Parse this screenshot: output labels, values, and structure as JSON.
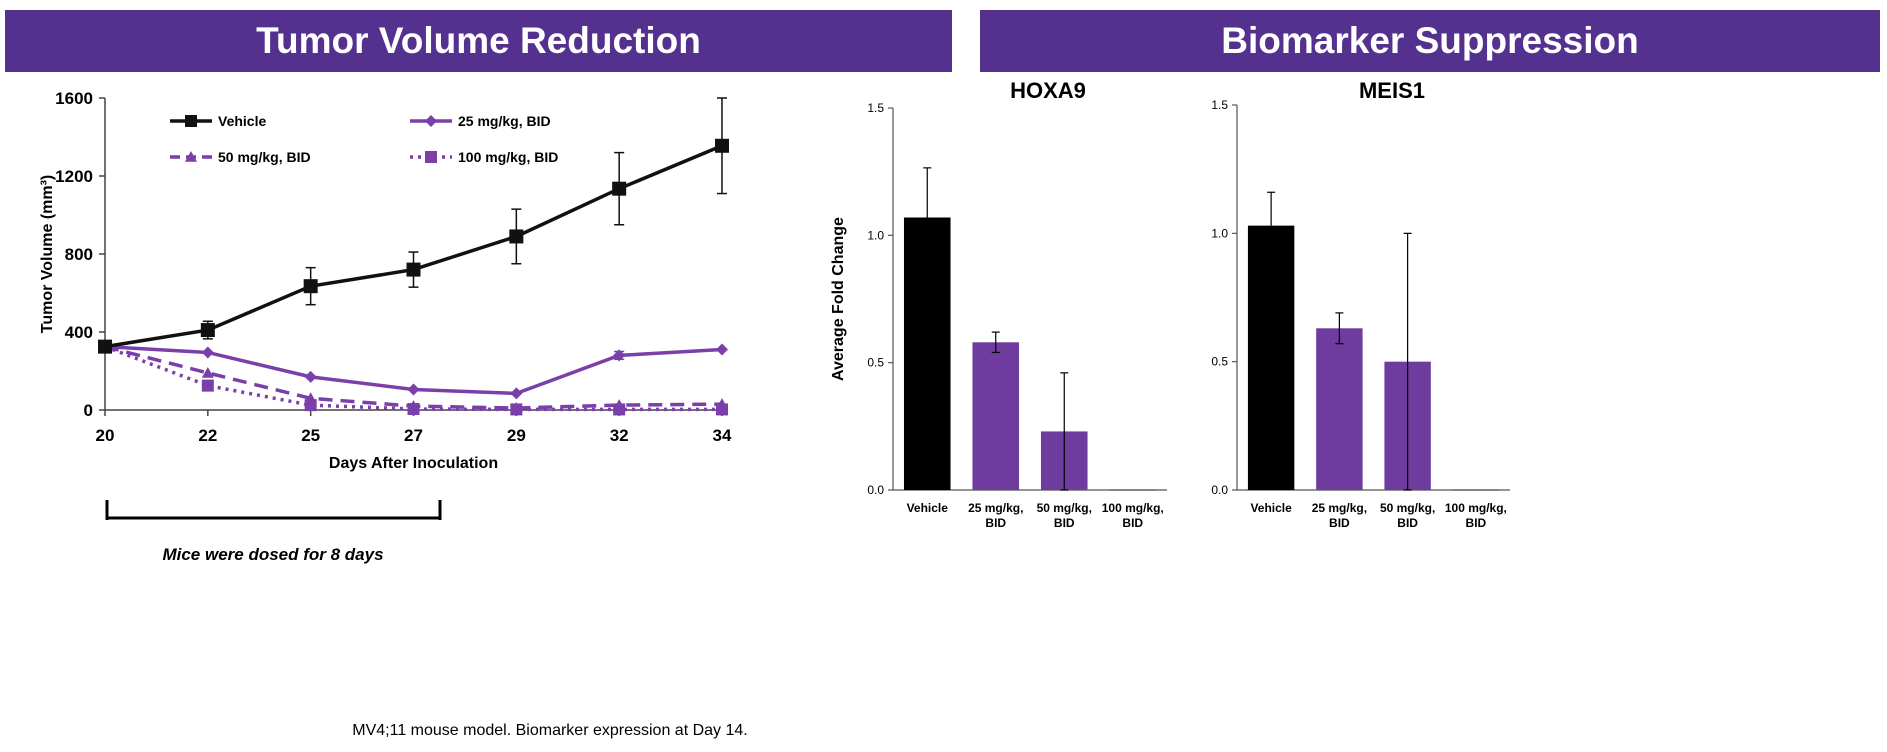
{
  "banners": {
    "left": "Tumor Volume Reduction",
    "right": "Biomarker Suppression"
  },
  "caption": "MV4;11 mouse model. Biomarker expression at Day 14.",
  "dosing_note": "Mice were dosed for 8 days",
  "chart_data": [
    {
      "type": "line",
      "title": "Tumor Volume Reduction",
      "xlabel": "Days After Inoculation",
      "ylabel": "Tumor Volume (mm³)",
      "categories": [
        "20",
        "22",
        "25",
        "27",
        "29",
        "32",
        "34"
      ],
      "ylim": [
        0,
        1600
      ],
      "yticks": [
        "0",
        "400",
        "800",
        "1200",
        "1600"
      ],
      "series": [
        {
          "name": "Vehicle",
          "marker": "square",
          "dash": "solid",
          "color": "#111111",
          "values": [
            325,
            410,
            635,
            720,
            890,
            1135,
            1355
          ],
          "errors": [
            0,
            45,
            95,
            90,
            140,
            185,
            245
          ]
        },
        {
          "name": "25 mg/kg, BID",
          "marker": "diamond",
          "dash": "solid",
          "color": "#7a3fa8",
          "values": [
            325,
            295,
            170,
            105,
            85,
            280,
            310
          ],
          "errors": [
            0,
            0,
            0,
            0,
            0,
            20,
            0
          ]
        },
        {
          "name": "50 mg/kg, BID",
          "marker": "triangle",
          "dash": "dashed",
          "color": "#7a3fa8",
          "values": [
            325,
            190,
            60,
            20,
            10,
            25,
            30
          ],
          "errors": [
            0,
            0,
            0,
            0,
            0,
            0,
            0
          ]
        },
        {
          "name": "100 mg/kg, BID",
          "marker": "square",
          "dash": "dotted",
          "color": "#7a3fa8",
          "values": [
            325,
            125,
            25,
            5,
            3,
            3,
            3
          ],
          "errors": [
            0,
            0,
            0,
            0,
            0,
            0,
            0
          ]
        }
      ]
    },
    {
      "type": "bar",
      "title": "HOXA9",
      "ylabel": "Average Fold Change",
      "categories": [
        "Vehicle",
        "25 mg/kg,\nBID",
        "50 mg/kg,\nBID",
        "100 mg/kg,\nBID"
      ],
      "values": [
        1.07,
        0.58,
        0.23,
        0.0
      ],
      "errors": [
        0.195,
        0.04,
        0.23,
        0.0
      ],
      "colors": [
        "#000000",
        "#6e3b9e",
        "#6e3b9e",
        "#6e3b9e"
      ],
      "ylim": [
        0,
        1.5
      ],
      "yticks": [
        "0.0",
        "0.5",
        "1.0",
        "1.5"
      ]
    },
    {
      "type": "bar",
      "title": "MEIS1",
      "ylabel": "",
      "categories": [
        "Vehicle",
        "25 mg/kg,\nBID",
        "50 mg/kg,\nBID",
        "100 mg/kg,\nBID"
      ],
      "values": [
        1.03,
        0.63,
        0.5,
        0.0
      ],
      "errors": [
        0.13,
        0.06,
        0.5,
        0.0
      ],
      "colors": [
        "#000000",
        "#6e3b9e",
        "#6e3b9e",
        "#6e3b9e"
      ],
      "ylim": [
        0,
        1.5
      ],
      "yticks": [
        "0.0",
        "0.5",
        "1.0",
        "1.5"
      ]
    }
  ]
}
